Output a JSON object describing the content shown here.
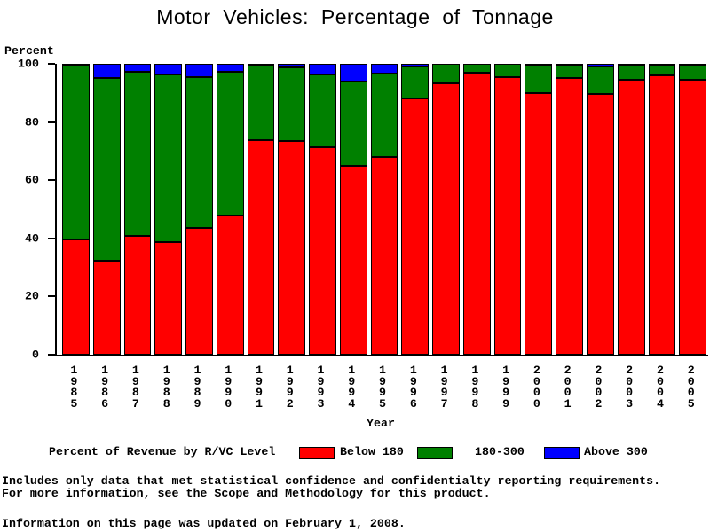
{
  "title": "Motor Vehicles: Percentage of Tonnage",
  "y_axis_label": "Percent",
  "x_axis_label": "Year",
  "legend": {
    "caption": "Percent of Revenue by R/VC Level",
    "items": [
      {
        "label": "Below 180",
        "color": "#ff0000"
      },
      {
        "label": "180-300",
        "color": "#008000"
      },
      {
        "label": "Above 300",
        "color": "#0000ff"
      }
    ]
  },
  "footnotes": "Includes only data that met statistical confidence and confidentialty reporting requirements.\nFor more information, see the Scope and Methodology for this product.",
  "updated_note": "Information on this page was updated on February 1, 2008.",
  "chart_data": {
    "type": "bar",
    "stacked": true,
    "title": "Motor Vehicles: Percentage of Tonnage",
    "xlabel": "Year",
    "ylabel": "Percent",
    "ylim": [
      0,
      100
    ],
    "y_ticks": [
      0,
      20,
      40,
      60,
      80,
      100
    ],
    "grid": false,
    "legend_position": "bottom",
    "categories": [
      1985,
      1986,
      1987,
      1988,
      1989,
      1990,
      1991,
      1992,
      1993,
      1994,
      1995,
      1996,
      1997,
      1998,
      1999,
      2000,
      2001,
      2002,
      2003,
      2004,
      2005
    ],
    "series": [
      {
        "name": "Below 180",
        "color": "#ff0000",
        "values": [
          39.5,
          32.3,
          40.7,
          38.8,
          43.5,
          48.0,
          74.0,
          73.4,
          71.2,
          65.0,
          68.0,
          88.0,
          93.2,
          97.0,
          95.3,
          90.0,
          95.3,
          89.5,
          94.5,
          96.2,
          94.7
        ]
      },
      {
        "name": "180-300",
        "color": "#008000",
        "values": [
          59.8,
          62.9,
          56.5,
          57.5,
          52.0,
          49.4,
          25.6,
          25.3,
          25.1,
          28.8,
          28.5,
          11.2,
          6.8,
          3.0,
          4.7,
          9.5,
          4.2,
          9.5,
          5.0,
          3.4,
          4.8
        ]
      },
      {
        "name": "Above 300",
        "color": "#0000ff",
        "values": [
          0.7,
          4.8,
          2.8,
          3.7,
          4.5,
          2.6,
          0.4,
          1.3,
          3.7,
          6.2,
          3.5,
          0.8,
          0.0,
          0.0,
          0.0,
          0.5,
          0.5,
          1.0,
          0.5,
          0.4,
          0.5
        ]
      }
    ]
  }
}
